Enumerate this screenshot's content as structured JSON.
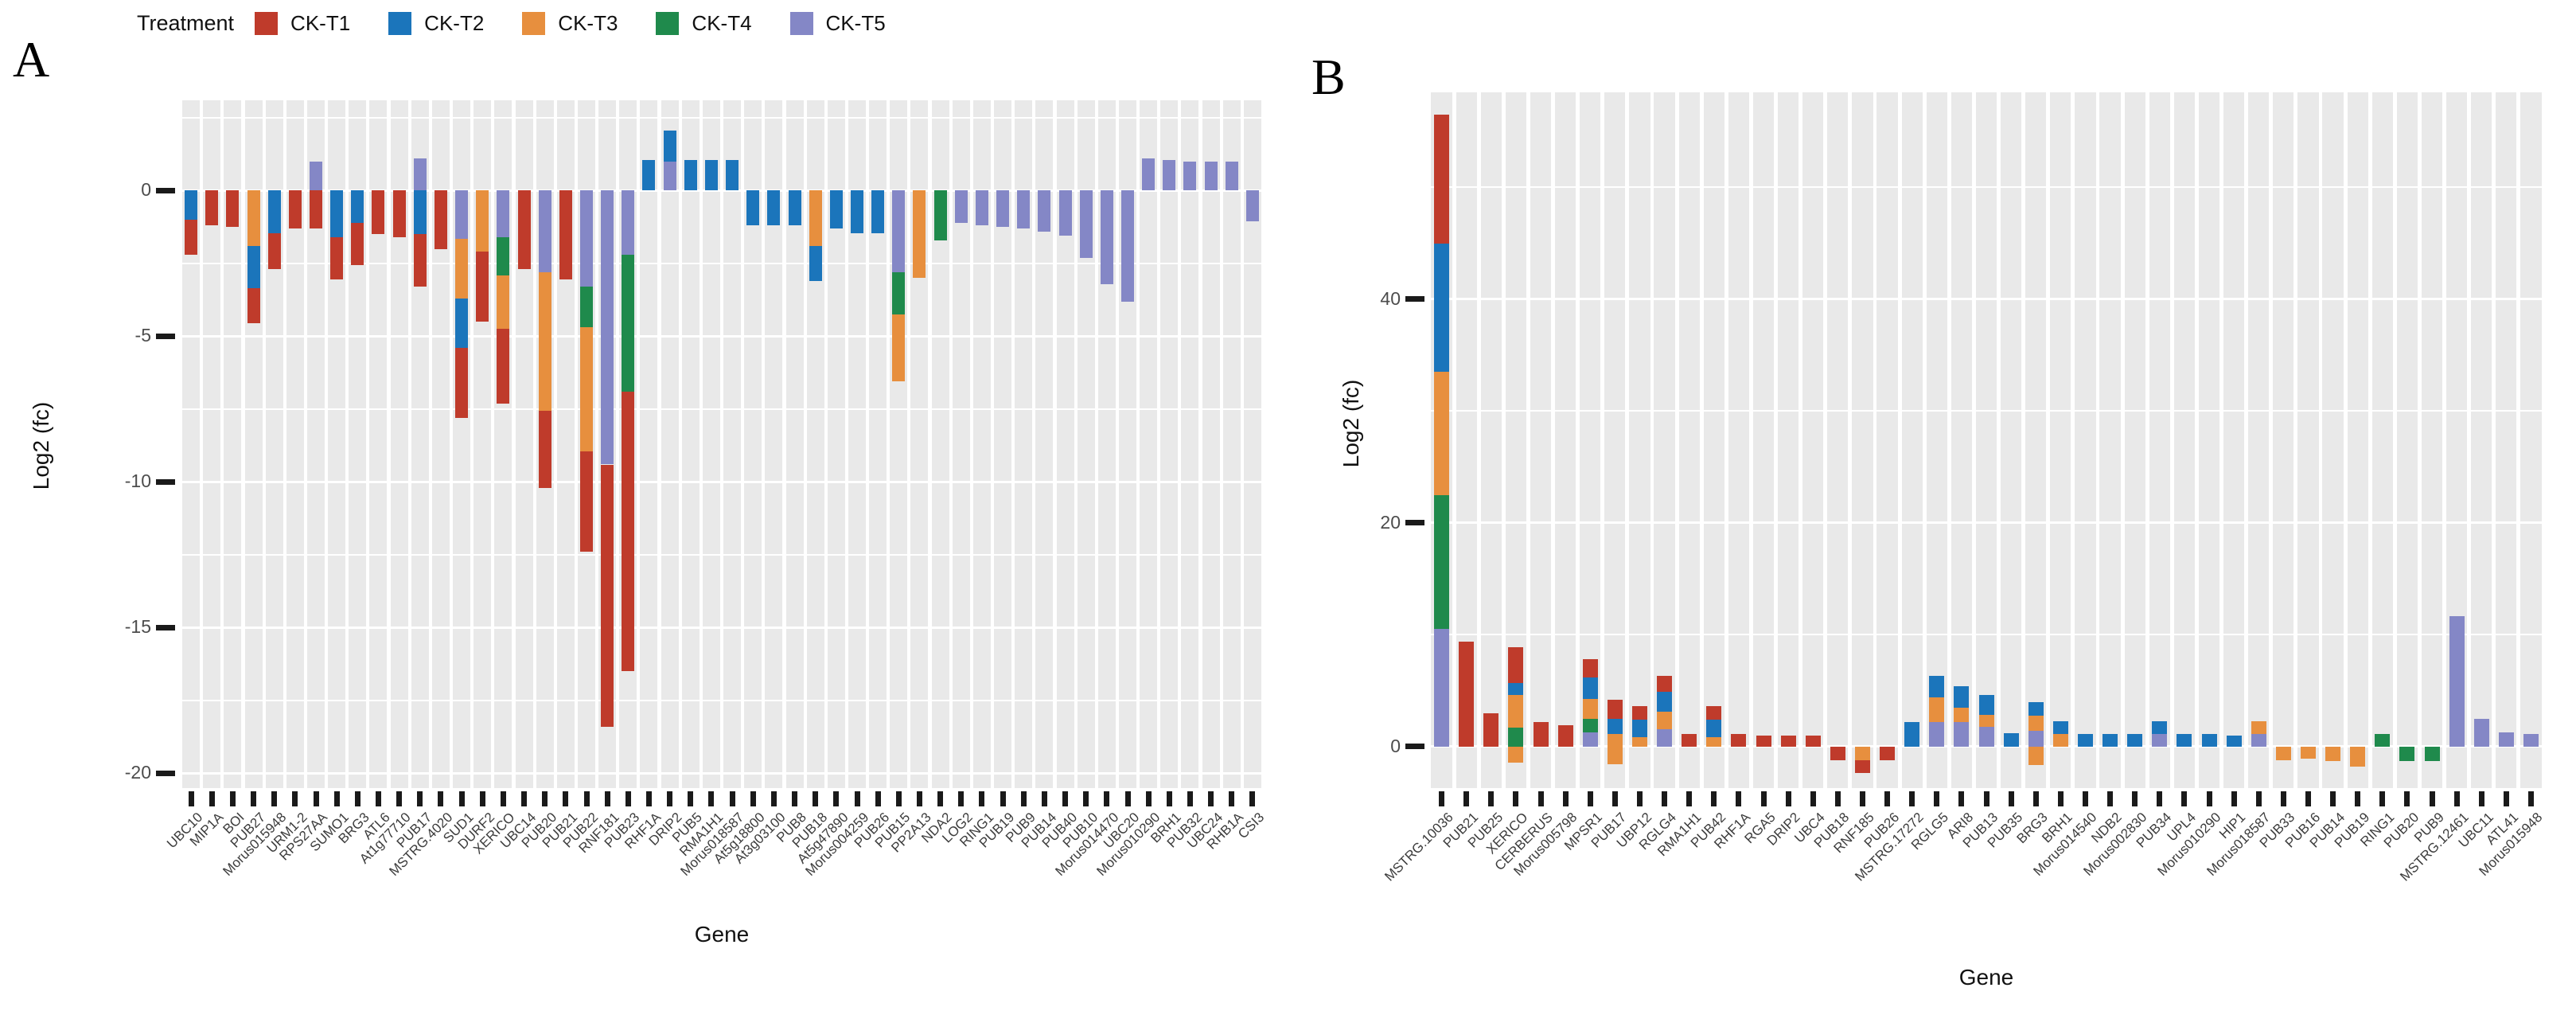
{
  "legend": {
    "title": "Treatment"
  },
  "treatments": {
    "order": [
      "T1",
      "T2",
      "T3",
      "T4",
      "T5"
    ],
    "T1": {
      "label": "CK-T1",
      "color": "#bf3b2b"
    },
    "T2": {
      "label": "CK-T2",
      "color": "#1b75bb"
    },
    "T3": {
      "label": "CK-T3",
      "color": "#e78f3e"
    },
    "T4": {
      "label": "CK-T4",
      "color": "#1f8a4c"
    },
    "T5": {
      "label": "CK-T5",
      "color": "#8487c6"
    }
  },
  "chart_data": [
    {
      "type": "bar",
      "stacked": true,
      "letter": "A",
      "xlabel": "Gene",
      "ylabel": "Log2 (fc)",
      "ylim": [
        3.1,
        -20.5
      ],
      "yticks": [
        0,
        -5,
        -10,
        -15,
        -20
      ],
      "grid_step": 2.5,
      "legend_position": "top",
      "bars": [
        {
          "g": "UBC10",
          "neg": [
            [
              "T2",
              1.0
            ],
            [
              "T1",
              1.2
            ]
          ]
        },
        {
          "g": "MIP1A",
          "neg": [
            [
              "T1",
              1.2
            ]
          ]
        },
        {
          "g": "BOI",
          "neg": [
            [
              "T1",
              1.25
            ]
          ]
        },
        {
          "g": "PUB27",
          "neg": [
            [
              "T3",
              1.9
            ],
            [
              "T2",
              1.45
            ],
            [
              "T1",
              1.2
            ]
          ]
        },
        {
          "g": "Morus015948",
          "neg": [
            [
              "T2",
              1.45
            ],
            [
              "T1",
              1.25
            ]
          ]
        },
        {
          "g": "URM1-2",
          "neg": [
            [
              "T1",
              1.3
            ]
          ]
        },
        {
          "g": "RPS27AA",
          "pos": [
            [
              "T5",
              1.0
            ]
          ],
          "neg": [
            [
              "T1",
              1.3
            ]
          ]
        },
        {
          "g": "SUMO1",
          "neg": [
            [
              "T2",
              1.6
            ],
            [
              "T1",
              1.45
            ]
          ]
        },
        {
          "g": "BRG3",
          "neg": [
            [
              "T2",
              1.1
            ],
            [
              "T1",
              1.45
            ]
          ]
        },
        {
          "g": "ATL6",
          "neg": [
            [
              "T1",
              1.5
            ]
          ]
        },
        {
          "g": "At1g77710",
          "neg": [
            [
              "T1",
              1.6
            ]
          ]
        },
        {
          "g": "PUB17",
          "pos": [
            [
              "T5",
              1.1
            ]
          ],
          "neg": [
            [
              "T2",
              1.5
            ],
            [
              "T1",
              1.8
            ]
          ]
        },
        {
          "g": "MSTRG.4020",
          "neg": [
            [
              "T1",
              2.0
            ]
          ]
        },
        {
          "g": "SUD1",
          "neg": [
            [
              "T5",
              1.65
            ],
            [
              "T3",
              2.05
            ],
            [
              "T2",
              1.7
            ],
            [
              "T1",
              2.4
            ]
          ]
        },
        {
          "g": "DURF2",
          "neg": [
            [
              "T3",
              2.1
            ],
            [
              "T1",
              2.4
            ]
          ]
        },
        {
          "g": "XERICO",
          "neg": [
            [
              "T5",
              1.6
            ],
            [
              "T4",
              1.3
            ],
            [
              "T3",
              1.85
            ],
            [
              "T1",
              2.55
            ]
          ]
        },
        {
          "g": "UBC14",
          "neg": [
            [
              "T1",
              2.7
            ]
          ]
        },
        {
          "g": "PUB20",
          "neg": [
            [
              "T5",
              2.8
            ],
            [
              "T3",
              4.75
            ],
            [
              "T1",
              2.65
            ]
          ]
        },
        {
          "g": "PUB21",
          "neg": [
            [
              "T1",
              3.05
            ]
          ]
        },
        {
          "g": "PUB22",
          "neg": [
            [
              "T5",
              3.3
            ],
            [
              "T4",
              1.4
            ],
            [
              "T3",
              4.25
            ],
            [
              "T1",
              3.45
            ]
          ]
        },
        {
          "g": "RNF181",
          "neg": [
            [
              "T5",
              9.4
            ],
            [
              "T1",
              9.0
            ]
          ]
        },
        {
          "g": "PUB23",
          "neg": [
            [
              "T5",
              2.2
            ],
            [
              "T4",
              4.7
            ],
            [
              "T1",
              9.6
            ]
          ]
        },
        {
          "g": "RHF1A",
          "pos": [
            [
              "T2",
              1.05
            ]
          ]
        },
        {
          "g": "DRIP2",
          "pos": [
            [
              "T5",
              1.0
            ],
            [
              "T2",
              1.05
            ]
          ]
        },
        {
          "g": "PUB5",
          "pos": [
            [
              "T2",
              1.05
            ]
          ]
        },
        {
          "g": "RMA1H1",
          "pos": [
            [
              "T2",
              1.05
            ]
          ]
        },
        {
          "g": "Morus018587",
          "pos": [
            [
              "T2",
              1.05
            ]
          ]
        },
        {
          "g": "At5g18800",
          "neg": [
            [
              "T2",
              1.2
            ]
          ]
        },
        {
          "g": "At3g03100",
          "neg": [
            [
              "T2",
              1.2
            ]
          ]
        },
        {
          "g": "PUB8",
          "neg": [
            [
              "T2",
              1.2
            ]
          ]
        },
        {
          "g": "PUB18",
          "neg": [
            [
              "T3",
              1.9
            ],
            [
              "T2",
              1.2
            ]
          ]
        },
        {
          "g": "At5g47890",
          "neg": [
            [
              "T2",
              1.3
            ]
          ]
        },
        {
          "g": "Morus004259",
          "neg": [
            [
              "T2",
              1.45
            ]
          ]
        },
        {
          "g": "PUB26",
          "neg": [
            [
              "T2",
              1.45
            ]
          ]
        },
        {
          "g": "PUB15",
          "neg": [
            [
              "T5",
              2.8
            ],
            [
              "T4",
              1.45
            ],
            [
              "T3",
              2.3
            ]
          ]
        },
        {
          "g": "PP2A13",
          "neg": [
            [
              "T3",
              3.0
            ]
          ]
        },
        {
          "g": "NDA2",
          "neg": [
            [
              "T4",
              1.7
            ]
          ]
        },
        {
          "g": "LOG2",
          "neg": [
            [
              "T5",
              1.1
            ]
          ]
        },
        {
          "g": "RING1",
          "neg": [
            [
              "T5",
              1.2
            ]
          ]
        },
        {
          "g": "PUB19",
          "neg": [
            [
              "T5",
              1.25
            ]
          ]
        },
        {
          "g": "PUB9",
          "neg": [
            [
              "T5",
              1.3
            ]
          ]
        },
        {
          "g": "PUB14",
          "neg": [
            [
              "T5",
              1.4
            ]
          ]
        },
        {
          "g": "PUB40",
          "neg": [
            [
              "T5",
              1.55
            ]
          ]
        },
        {
          "g": "PUB10",
          "neg": [
            [
              "T5",
              2.3
            ]
          ]
        },
        {
          "g": "Morus014470",
          "neg": [
            [
              "T5",
              3.2
            ]
          ]
        },
        {
          "g": "UBC20",
          "neg": [
            [
              "T5",
              3.8
            ]
          ]
        },
        {
          "g": "Morus010290",
          "pos": [
            [
              "T5",
              1.1
            ]
          ]
        },
        {
          "g": "BRH1",
          "pos": [
            [
              "T5",
              1.05
            ]
          ]
        },
        {
          "g": "PUB32",
          "pos": [
            [
              "T5",
              1.0
            ]
          ]
        },
        {
          "g": "UBC24",
          "pos": [
            [
              "T5",
              1.0
            ]
          ]
        },
        {
          "g": "RHB1A",
          "pos": [
            [
              "T5",
              1.0
            ]
          ]
        },
        {
          "g": "CSI3",
          "neg": [
            [
              "T5",
              1.05
            ]
          ]
        }
      ]
    },
    {
      "type": "bar",
      "stacked": true,
      "letter": "B",
      "xlabel": "Gene",
      "ylabel": "Log2 (fc)",
      "ylim": [
        58.5,
        -3.7
      ],
      "yticks": [
        40,
        20,
        0
      ],
      "grid_step": 10,
      "legend_position": "top",
      "bars": [
        {
          "g": "MSTRG.10036",
          "pos": [
            [
              "T5",
              10.5
            ],
            [
              "T4",
              12.0
            ],
            [
              "T3",
              11.0
            ],
            [
              "T2",
              11.5
            ],
            [
              "T1",
              11.5
            ]
          ]
        },
        {
          "g": "PUB21",
          "pos": [
            [
              "T1",
              9.4
            ]
          ]
        },
        {
          "g": "PUB25",
          "pos": [
            [
              "T1",
              3.0
            ]
          ]
        },
        {
          "g": "XERICO",
          "pos": [
            [
              "T4",
              1.7
            ],
            [
              "T3",
              2.9
            ],
            [
              "T2",
              1.1
            ],
            [
              "T1",
              3.2
            ]
          ],
          "neg": [
            [
              "T3",
              1.4
            ]
          ]
        },
        {
          "g": "CERBERUS",
          "pos": [
            [
              "T1",
              2.2
            ]
          ]
        },
        {
          "g": "Morus005798",
          "pos": [
            [
              "T1",
              1.9
            ]
          ]
        },
        {
          "g": "MPSR1",
          "pos": [
            [
              "T5",
              1.3
            ],
            [
              "T4",
              1.2
            ],
            [
              "T3",
              1.8
            ],
            [
              "T2",
              1.9
            ],
            [
              "T1",
              1.6
            ]
          ]
        },
        {
          "g": "PUB17",
          "pos": [
            [
              "T3",
              1.1
            ],
            [
              "T2",
              1.4
            ],
            [
              "T1",
              1.7
            ]
          ],
          "neg": [
            [
              "T3",
              1.6
            ]
          ]
        },
        {
          "g": "UBP12",
          "pos": [
            [
              "T3",
              0.85
            ],
            [
              "T2",
              1.55
            ],
            [
              "T1",
              1.2
            ]
          ]
        },
        {
          "g": "RGLG4",
          "pos": [
            [
              "T5",
              1.55
            ],
            [
              "T3",
              1.55
            ],
            [
              "T2",
              1.8
            ],
            [
              "T1",
              1.4
            ]
          ]
        },
        {
          "g": "RMA1H1",
          "pos": [
            [
              "T1",
              1.1
            ]
          ]
        },
        {
          "g": "PUB42",
          "pos": [
            [
              "T3",
              0.85
            ],
            [
              "T2",
              1.55
            ],
            [
              "T1",
              1.2
            ]
          ]
        },
        {
          "g": "RHF1A",
          "pos": [
            [
              "T1",
              1.1
            ]
          ]
        },
        {
          "g": "RGA5",
          "pos": [
            [
              "T1",
              1.0
            ]
          ]
        },
        {
          "g": "DRIP2",
          "pos": [
            [
              "T1",
              1.0
            ]
          ]
        },
        {
          "g": "UBC4",
          "pos": [
            [
              "T1",
              1.0
            ]
          ]
        },
        {
          "g": "PUB18",
          "neg": [
            [
              "T1",
              1.2
            ]
          ]
        },
        {
          "g": "RNF185",
          "neg": [
            [
              "T3",
              1.2
            ],
            [
              "T1",
              1.15
            ]
          ]
        },
        {
          "g": "PUB26",
          "neg": [
            [
              "T1",
              1.2
            ]
          ]
        },
        {
          "g": "MSTRG.17272",
          "pos": [
            [
              "T2",
              2.2
            ]
          ]
        },
        {
          "g": "RGLG5",
          "pos": [
            [
              "T5",
              2.2
            ],
            [
              "T3",
              2.2
            ],
            [
              "T2",
              1.95
            ]
          ]
        },
        {
          "g": "ARI8",
          "pos": [
            [
              "T5",
              2.2
            ],
            [
              "T3",
              1.25
            ],
            [
              "T2",
              1.95
            ]
          ]
        },
        {
          "g": "PUB13",
          "pos": [
            [
              "T5",
              1.8
            ],
            [
              "T3",
              1.05
            ],
            [
              "T2",
              1.8
            ]
          ]
        },
        {
          "g": "PUB35",
          "pos": [
            [
              "T2",
              1.2
            ]
          ]
        },
        {
          "g": "BRG3",
          "pos": [
            [
              "T5",
              1.45
            ],
            [
              "T3",
              1.3
            ],
            [
              "T2",
              1.2
            ]
          ],
          "neg": [
            [
              "T3",
              1.65
            ]
          ]
        },
        {
          "g": "BRH1",
          "pos": [
            [
              "T3",
              1.1
            ],
            [
              "T2",
              1.15
            ]
          ]
        },
        {
          "g": "Morus014540",
          "pos": [
            [
              "T2",
              1.1
            ]
          ]
        },
        {
          "g": "NDB2",
          "pos": [
            [
              "T2",
              1.1
            ]
          ]
        },
        {
          "g": "Morus002830",
          "pos": [
            [
              "T2",
              1.1
            ]
          ]
        },
        {
          "g": "PUB34",
          "pos": [
            [
              "T5",
              1.1
            ],
            [
              "T2",
              1.15
            ]
          ]
        },
        {
          "g": "UPL4",
          "pos": [
            [
              "T2",
              1.1
            ]
          ]
        },
        {
          "g": "Morus010290",
          "pos": [
            [
              "T2",
              1.1
            ]
          ]
        },
        {
          "g": "HIP1",
          "pos": [
            [
              "T2",
              1.0
            ]
          ]
        },
        {
          "g": "Morus018587",
          "pos": [
            [
              "T5",
              1.1
            ],
            [
              "T3",
              1.15
            ]
          ]
        },
        {
          "g": "PUB33",
          "neg": [
            [
              "T3",
              1.2
            ]
          ]
        },
        {
          "g": "PUB16",
          "neg": [
            [
              "T3",
              1.1
            ]
          ]
        },
        {
          "g": "PUB14",
          "neg": [
            [
              "T3",
              1.3
            ]
          ]
        },
        {
          "g": "PUB19",
          "neg": [
            [
              "T3",
              1.75
            ]
          ]
        },
        {
          "g": "RING1",
          "pos": [
            [
              "T4",
              1.1
            ]
          ]
        },
        {
          "g": "PUB20",
          "neg": [
            [
              "T4",
              1.3
            ]
          ]
        },
        {
          "g": "PUB9",
          "neg": [
            [
              "T4",
              1.3
            ]
          ]
        },
        {
          "g": "MSTRG.12461",
          "pos": [
            [
              "T5",
              11.7
            ]
          ]
        },
        {
          "g": "UBC11",
          "pos": [
            [
              "T5",
              2.5
            ]
          ]
        },
        {
          "g": "ATL41",
          "pos": [
            [
              "T5",
              1.3
            ]
          ]
        },
        {
          "g": "Morus015948",
          "pos": [
            [
              "T5",
              1.1
            ]
          ]
        }
      ]
    }
  ]
}
